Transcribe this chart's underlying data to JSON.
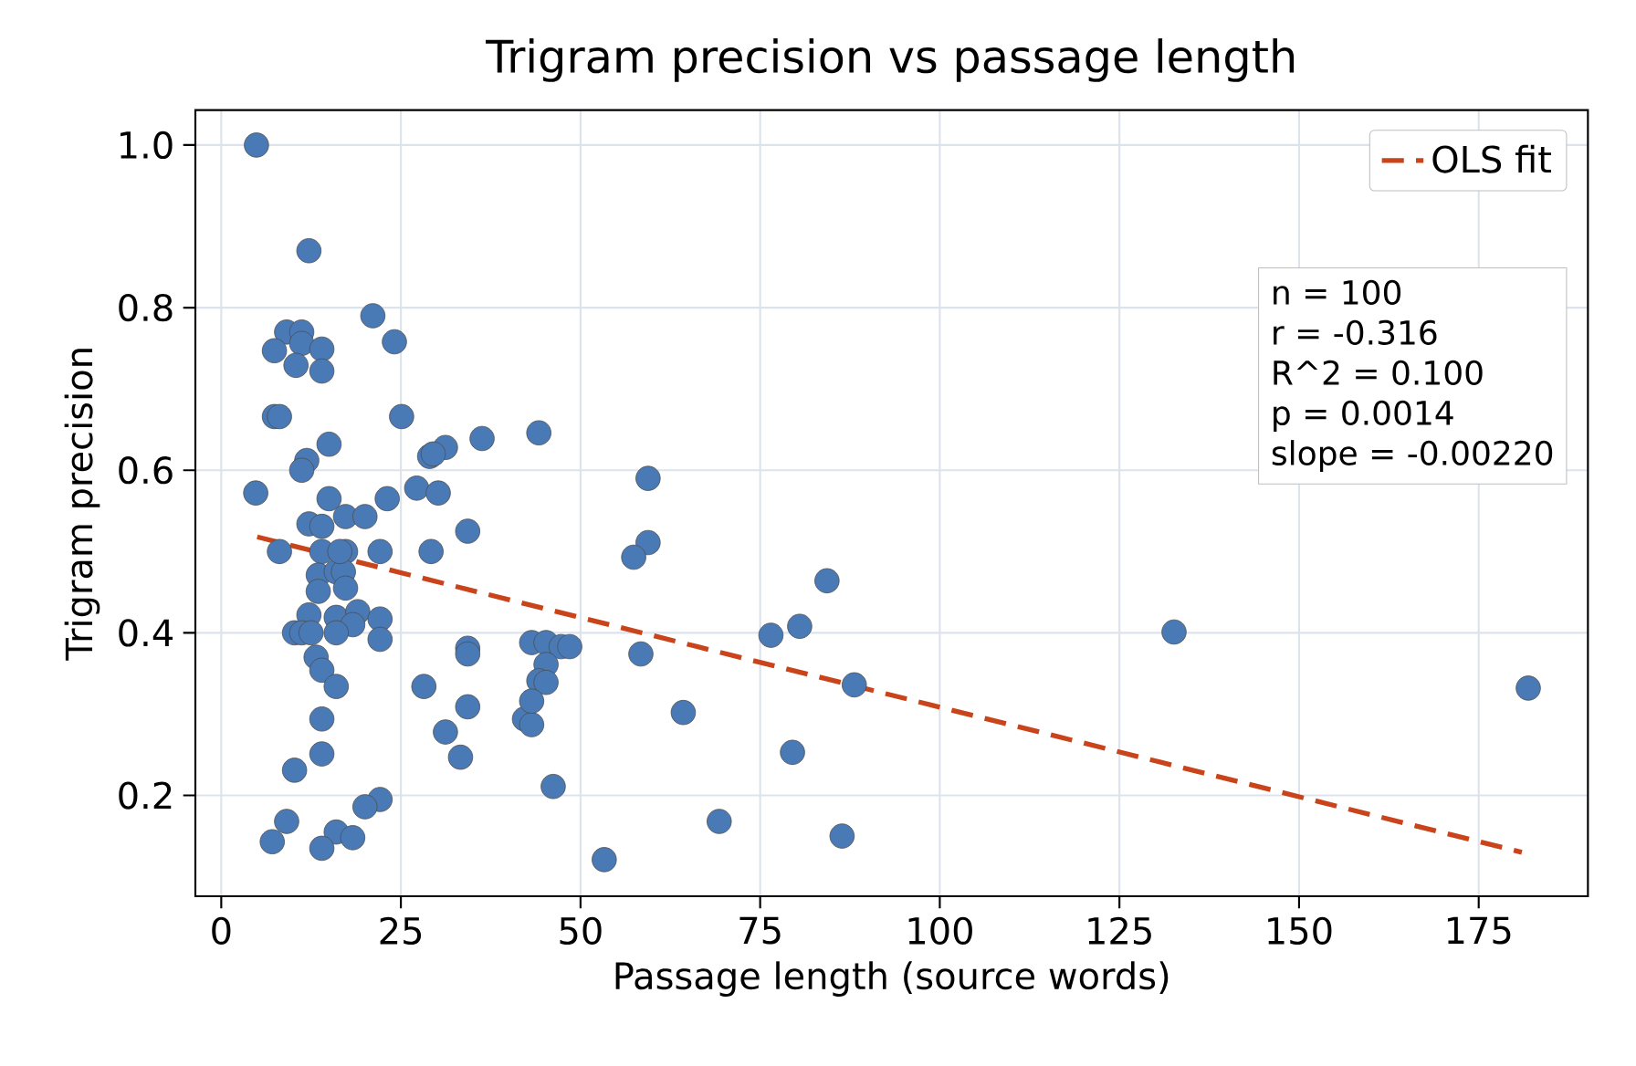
{
  "chart_data": {
    "type": "scatter",
    "title": "Trigram precision vs passage length",
    "xlabel": "Passage length (source words)",
    "ylabel": "Trigram precision",
    "xlim": [
      -3.6,
      190.2
    ],
    "ylim": [
      0.076,
      1.043
    ],
    "xticks": [
      0,
      25,
      50,
      75,
      100,
      125,
      150,
      175
    ],
    "yticks": [
      {
        "value": 0.2,
        "label": "0.2"
      },
      {
        "value": 0.4,
        "label": "0.4"
      },
      {
        "value": 0.6,
        "label": "0.6"
      },
      {
        "value": 0.8,
        "label": "0.8"
      },
      {
        "value": 1.0,
        "label": "1.0"
      }
    ],
    "grid": true,
    "legend": "top right",
    "annotations": [
      "n = 100",
      "r = -0.316",
      "R^2 = 0.100",
      "p = 0.0014",
      "slope = -0.00220"
    ],
    "series": [
      {
        "color": "#4a7ab5",
        "marker": "circle",
        "x": [
          4.9,
          12.2,
          21.1,
          9.1,
          11.2,
          7.4,
          11.2,
          14,
          10.4,
          14,
          24.1,
          7.4,
          8.1,
          25.1,
          15,
          11.9,
          11.2,
          4.8,
          27.2,
          30.2,
          29,
          31.2,
          36.3,
          44.2,
          15,
          23.1,
          29.5,
          17.3,
          20,
          12.2,
          14,
          34.3,
          8.1,
          14,
          17.3,
          22.1,
          29.2,
          13.5,
          16,
          17,
          17.3,
          13.5,
          12.2,
          16,
          19,
          18.3,
          22.1,
          10.2,
          11.2,
          16,
          22.1,
          34.3,
          34.3,
          13.2,
          14,
          16,
          28.2,
          34.3,
          14,
          31.2,
          14,
          33.3,
          10.2,
          22.1,
          20,
          9.1,
          7.1,
          16,
          18.3,
          14,
          42.2,
          43.2,
          59.4,
          59.4,
          57.4,
          43.2,
          45.2,
          47.3,
          48.5,
          45.2,
          44.2,
          45.2,
          43.2,
          46.2,
          53.3,
          58.4,
          64.3,
          69.3,
          76.5,
          80.5,
          84.3,
          79.5,
          86.4,
          88.1,
          132.6,
          181.9,
          16.5,
          12.5
        ],
        "values": [
          1.0,
          0.87,
          0.79,
          0.77,
          0.77,
          0.747,
          0.756,
          0.749,
          0.729,
          0.722,
          0.758,
          0.666,
          0.666,
          0.666,
          0.632,
          0.612,
          0.6,
          0.572,
          0.578,
          0.572,
          0.617,
          0.628,
          0.639,
          0.646,
          0.565,
          0.565,
          0.62,
          0.543,
          0.543,
          0.534,
          0.531,
          0.525,
          0.5,
          0.5,
          0.5,
          0.5,
          0.5,
          0.471,
          0.475,
          0.475,
          0.455,
          0.451,
          0.422,
          0.419,
          0.426,
          0.41,
          0.417,
          0.4,
          0.4,
          0.4,
          0.392,
          0.381,
          0.374,
          0.37,
          0.354,
          0.334,
          0.334,
          0.309,
          0.294,
          0.278,
          0.251,
          0.247,
          0.231,
          0.195,
          0.186,
          0.168,
          0.143,
          0.155,
          0.148,
          0.135,
          0.294,
          0.287,
          0.59,
          0.511,
          0.493,
          0.388,
          0.388,
          0.383,
          0.383,
          0.361,
          0.341,
          0.339,
          0.316,
          0.211,
          0.121,
          0.374,
          0.302,
          0.168,
          0.397,
          0.408,
          0.464,
          0.253,
          0.15,
          0.336,
          0.401,
          0.332,
          0.5,
          0.4
        ]
      },
      {
        "type": "line",
        "name": "OLS fit",
        "color": "#c9441a",
        "line_style": "dashed",
        "marker": "none",
        "x": [
          5,
          181
        ],
        "values": [
          0.518,
          0.13
        ]
      }
    ]
  }
}
